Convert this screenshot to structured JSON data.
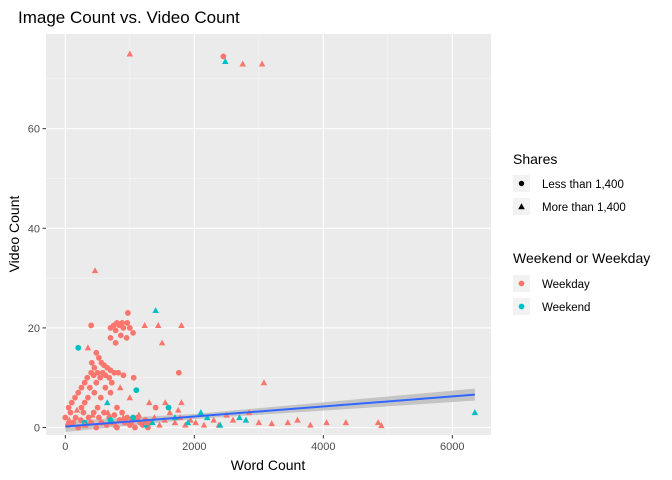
{
  "chart_data": {
    "type": "scatter",
    "title": "Image Count vs. Video Count",
    "xlabel": "Word Count",
    "ylabel": "Video Count",
    "xlim": [
      -300,
      6600
    ],
    "ylim": [
      -1.5,
      79
    ],
    "x_ticks": [
      0,
      2000,
      4000,
      6000
    ],
    "x_tick_labels": [
      "0",
      "2000",
      "4000",
      "6000"
    ],
    "y_ticks": [
      0,
      20,
      40,
      60
    ],
    "y_tick_labels": [
      "0",
      "20",
      "40",
      "60"
    ],
    "grid": true,
    "panel_background": "#ebebeb",
    "colors": {
      "Weekday": "#f8766d",
      "Weekend": "#00bfc4",
      "trend": "#3366ff",
      "ribbon": "#bdbdbd"
    },
    "legend_position": "right",
    "legend": {
      "shape_title": "Shares",
      "shape_items": [
        {
          "label": "Less than 1,400",
          "shape": "circle"
        },
        {
          "label": "More than 1,400",
          "shape": "triangle"
        }
      ],
      "color_title": "Weekend or Weekday",
      "color_items": [
        {
          "label": "Weekday",
          "color": "#f8766d"
        },
        {
          "label": "Weekend",
          "color": "#00bfc4"
        }
      ]
    },
    "trend": {
      "x": [
        0,
        6350
      ],
      "y": [
        0.2,
        6.6
      ],
      "se_low_end": 5.4,
      "se_high_end": 7.8
    },
    "points": [
      {
        "x": 1000,
        "y": 75,
        "shape": "triangle",
        "group": "Weekday"
      },
      {
        "x": 2450,
        "y": 74.5,
        "shape": "circle",
        "group": "Weekday"
      },
      {
        "x": 2480,
        "y": 73.5,
        "shape": "triangle",
        "group": "Weekend"
      },
      {
        "x": 2750,
        "y": 73,
        "shape": "triangle",
        "group": "Weekday"
      },
      {
        "x": 3050,
        "y": 73,
        "shape": "triangle",
        "group": "Weekday"
      },
      {
        "x": 460,
        "y": 31.5,
        "shape": "triangle",
        "group": "Weekday"
      },
      {
        "x": 1400,
        "y": 23.5,
        "shape": "triangle",
        "group": "Weekend"
      },
      {
        "x": 970,
        "y": 23,
        "shape": "circle",
        "group": "Weekday"
      },
      {
        "x": 800,
        "y": 21,
        "shape": "circle",
        "group": "Weekday"
      },
      {
        "x": 880,
        "y": 21,
        "shape": "circle",
        "group": "Weekday"
      },
      {
        "x": 960,
        "y": 21,
        "shape": "circle",
        "group": "Weekday"
      },
      {
        "x": 750,
        "y": 20.5,
        "shape": "circle",
        "group": "Weekday"
      },
      {
        "x": 840,
        "y": 20.5,
        "shape": "circle",
        "group": "Weekday"
      },
      {
        "x": 700,
        "y": 20,
        "shape": "circle",
        "group": "Weekday"
      },
      {
        "x": 900,
        "y": 20,
        "shape": "circle",
        "group": "Weekday"
      },
      {
        "x": 1000,
        "y": 20,
        "shape": "circle",
        "group": "Weekday"
      },
      {
        "x": 780,
        "y": 19.5,
        "shape": "circle",
        "group": "Weekday"
      },
      {
        "x": 1050,
        "y": 19,
        "shape": "circle",
        "group": "Weekday"
      },
      {
        "x": 860,
        "y": 18.5,
        "shape": "circle",
        "group": "Weekday"
      },
      {
        "x": 950,
        "y": 18,
        "shape": "circle",
        "group": "Weekday"
      },
      {
        "x": 1230,
        "y": 20.5,
        "shape": "triangle",
        "group": "Weekday"
      },
      {
        "x": 1440,
        "y": 20.5,
        "shape": "triangle",
        "group": "Weekday"
      },
      {
        "x": 1800,
        "y": 20.5,
        "shape": "triangle",
        "group": "Weekday"
      },
      {
        "x": 400,
        "y": 20.5,
        "shape": "circle",
        "group": "Weekday"
      },
      {
        "x": 200,
        "y": 16,
        "shape": "circle",
        "group": "Weekend"
      },
      {
        "x": 350,
        "y": 16,
        "shape": "triangle",
        "group": "Weekday"
      },
      {
        "x": 1500,
        "y": 17,
        "shape": "triangle",
        "group": "Weekday"
      },
      {
        "x": 700,
        "y": 18,
        "shape": "circle",
        "group": "Weekday"
      },
      {
        "x": 780,
        "y": 17,
        "shape": "circle",
        "group": "Weekday"
      },
      {
        "x": 480,
        "y": 15,
        "shape": "circle",
        "group": "Weekday"
      },
      {
        "x": 520,
        "y": 14,
        "shape": "circle",
        "group": "Weekday"
      },
      {
        "x": 410,
        "y": 13,
        "shape": "circle",
        "group": "Weekday"
      },
      {
        "x": 560,
        "y": 13,
        "shape": "circle",
        "group": "Weekday"
      },
      {
        "x": 600,
        "y": 12.5,
        "shape": "circle",
        "group": "Weekday"
      },
      {
        "x": 450,
        "y": 12,
        "shape": "circle",
        "group": "Weekday"
      },
      {
        "x": 650,
        "y": 12,
        "shape": "circle",
        "group": "Weekday"
      },
      {
        "x": 700,
        "y": 11.5,
        "shape": "circle",
        "group": "Weekday"
      },
      {
        "x": 400,
        "y": 11,
        "shape": "circle",
        "group": "Weekday"
      },
      {
        "x": 500,
        "y": 11,
        "shape": "circle",
        "group": "Weekday"
      },
      {
        "x": 580,
        "y": 11,
        "shape": "circle",
        "group": "Weekday"
      },
      {
        "x": 760,
        "y": 11,
        "shape": "circle",
        "group": "Weekday"
      },
      {
        "x": 820,
        "y": 11,
        "shape": "circle",
        "group": "Weekday"
      },
      {
        "x": 440,
        "y": 10.5,
        "shape": "circle",
        "group": "Weekday"
      },
      {
        "x": 620,
        "y": 10.5,
        "shape": "circle",
        "group": "Weekday"
      },
      {
        "x": 900,
        "y": 10.5,
        "shape": "circle",
        "group": "Weekday"
      },
      {
        "x": 340,
        "y": 10,
        "shape": "circle",
        "group": "Weekday"
      },
      {
        "x": 540,
        "y": 10,
        "shape": "circle",
        "group": "Weekday"
      },
      {
        "x": 680,
        "y": 10,
        "shape": "circle",
        "group": "Weekday"
      },
      {
        "x": 1060,
        "y": 10,
        "shape": "circle",
        "group": "Weekday"
      },
      {
        "x": 300,
        "y": 9,
        "shape": "circle",
        "group": "Weekday"
      },
      {
        "x": 480,
        "y": 9,
        "shape": "circle",
        "group": "Weekday"
      },
      {
        "x": 720,
        "y": 9,
        "shape": "circle",
        "group": "Weekday"
      },
      {
        "x": 1760,
        "y": 11,
        "shape": "circle",
        "group": "Weekday"
      },
      {
        "x": 3080,
        "y": 9,
        "shape": "triangle",
        "group": "Weekday"
      },
      {
        "x": 250,
        "y": 8,
        "shape": "circle",
        "group": "Weekday"
      },
      {
        "x": 380,
        "y": 8,
        "shape": "circle",
        "group": "Weekday"
      },
      {
        "x": 620,
        "y": 8,
        "shape": "circle",
        "group": "Weekday"
      },
      {
        "x": 850,
        "y": 8,
        "shape": "triangle",
        "group": "Weekday"
      },
      {
        "x": 1100,
        "y": 7.5,
        "shape": "circle",
        "group": "Weekend"
      },
      {
        "x": 200,
        "y": 7,
        "shape": "circle",
        "group": "Weekday"
      },
      {
        "x": 450,
        "y": 7,
        "shape": "circle",
        "group": "Weekday"
      },
      {
        "x": 700,
        "y": 7,
        "shape": "circle",
        "group": "Weekday"
      },
      {
        "x": 150,
        "y": 6,
        "shape": "circle",
        "group": "Weekday"
      },
      {
        "x": 350,
        "y": 6,
        "shape": "circle",
        "group": "Weekday"
      },
      {
        "x": 550,
        "y": 6,
        "shape": "circle",
        "group": "Weekday"
      },
      {
        "x": 1000,
        "y": 6,
        "shape": "triangle",
        "group": "Weekday"
      },
      {
        "x": 100,
        "y": 5,
        "shape": "circle",
        "group": "Weekday"
      },
      {
        "x": 300,
        "y": 5,
        "shape": "circle",
        "group": "Weekday"
      },
      {
        "x": 650,
        "y": 5,
        "shape": "triangle",
        "group": "Weekend"
      },
      {
        "x": 1300,
        "y": 5,
        "shape": "triangle",
        "group": "Weekday"
      },
      {
        "x": 1550,
        "y": 5,
        "shape": "triangle",
        "group": "Weekday"
      },
      {
        "x": 1800,
        "y": 5,
        "shape": "triangle",
        "group": "Weekday"
      },
      {
        "x": 50,
        "y": 4,
        "shape": "circle",
        "group": "Weekday"
      },
      {
        "x": 250,
        "y": 4,
        "shape": "circle",
        "group": "Weekday"
      },
      {
        "x": 500,
        "y": 4,
        "shape": "circle",
        "group": "Weekday"
      },
      {
        "x": 800,
        "y": 4,
        "shape": "circle",
        "group": "Weekday"
      },
      {
        "x": 1400,
        "y": 4,
        "shape": "circle",
        "group": "Weekday"
      },
      {
        "x": 1600,
        "y": 4,
        "shape": "circle",
        "group": "Weekend"
      },
      {
        "x": 1750,
        "y": 3.5,
        "shape": "triangle",
        "group": "Weekday"
      },
      {
        "x": 2100,
        "y": 3,
        "shape": "triangle",
        "group": "Weekend"
      },
      {
        "x": 2500,
        "y": 2.5,
        "shape": "triangle",
        "group": "Weekday"
      },
      {
        "x": 2600,
        "y": 1.5,
        "shape": "triangle",
        "group": "Weekday"
      },
      {
        "x": 2700,
        "y": 2,
        "shape": "triangle",
        "group": "Weekend"
      },
      {
        "x": 2800,
        "y": 1.5,
        "shape": "triangle",
        "group": "Weekend"
      },
      {
        "x": 2850,
        "y": 3,
        "shape": "triangle",
        "group": "Weekday"
      },
      {
        "x": 3000,
        "y": 1,
        "shape": "triangle",
        "group": "Weekday"
      },
      {
        "x": 3200,
        "y": 0.8,
        "shape": "triangle",
        "group": "Weekday"
      },
      {
        "x": 3450,
        "y": 1,
        "shape": "triangle",
        "group": "Weekday"
      },
      {
        "x": 3600,
        "y": 1.5,
        "shape": "triangle",
        "group": "Weekday"
      },
      {
        "x": 3800,
        "y": 0.5,
        "shape": "triangle",
        "group": "Weekday"
      },
      {
        "x": 4050,
        "y": 1,
        "shape": "triangle",
        "group": "Weekday"
      },
      {
        "x": 4350,
        "y": 1,
        "shape": "triangle",
        "group": "Weekday"
      },
      {
        "x": 4850,
        "y": 1,
        "shape": "triangle",
        "group": "Weekday"
      },
      {
        "x": 4900,
        "y": 0.4,
        "shape": "triangle",
        "group": "Weekday"
      },
      {
        "x": 6350,
        "y": 3,
        "shape": "triangle",
        "group": "Weekend"
      },
      {
        "x": 0,
        "y": 2,
        "shape": "circle",
        "group": "Weekday"
      },
      {
        "x": 40,
        "y": 0.5,
        "shape": "circle",
        "group": "Weekday"
      },
      {
        "x": 80,
        "y": 3,
        "shape": "circle",
        "group": "Weekday"
      },
      {
        "x": 120,
        "y": 1,
        "shape": "circle",
        "group": "Weekday"
      },
      {
        "x": 160,
        "y": 2,
        "shape": "circle",
        "group": "Weekday"
      },
      {
        "x": 200,
        "y": 0,
        "shape": "circle",
        "group": "Weekday"
      },
      {
        "x": 240,
        "y": 1.5,
        "shape": "circle",
        "group": "Weekday"
      },
      {
        "x": 280,
        "y": 3,
        "shape": "circle",
        "group": "Weekday"
      },
      {
        "x": 320,
        "y": 0.5,
        "shape": "circle",
        "group": "Weekday"
      },
      {
        "x": 360,
        "y": 2,
        "shape": "circle",
        "group": "Weekday"
      },
      {
        "x": 400,
        "y": 1,
        "shape": "circle",
        "group": "Weekday"
      },
      {
        "x": 440,
        "y": 3,
        "shape": "circle",
        "group": "Weekday"
      },
      {
        "x": 480,
        "y": 0,
        "shape": "circle",
        "group": "Weekday"
      },
      {
        "x": 520,
        "y": 2,
        "shape": "circle",
        "group": "Weekday"
      },
      {
        "x": 560,
        "y": 1,
        "shape": "circle",
        "group": "Weekday"
      },
      {
        "x": 600,
        "y": 3,
        "shape": "circle",
        "group": "Weekday"
      },
      {
        "x": 640,
        "y": 0.5,
        "shape": "circle",
        "group": "Weekday"
      },
      {
        "x": 680,
        "y": 2,
        "shape": "circle",
        "group": "Weekday"
      },
      {
        "x": 720,
        "y": 1,
        "shape": "circle",
        "group": "Weekday"
      },
      {
        "x": 760,
        "y": 2.5,
        "shape": "circle",
        "group": "Weekday"
      },
      {
        "x": 800,
        "y": 0,
        "shape": "circle",
        "group": "Weekday"
      },
      {
        "x": 840,
        "y": 1.5,
        "shape": "circle",
        "group": "Weekday"
      },
      {
        "x": 880,
        "y": 3,
        "shape": "circle",
        "group": "Weekday"
      },
      {
        "x": 920,
        "y": 1,
        "shape": "circle",
        "group": "Weekday"
      },
      {
        "x": 960,
        "y": 2,
        "shape": "circle",
        "group": "Weekday"
      },
      {
        "x": 1000,
        "y": 0.5,
        "shape": "circle",
        "group": "Weekday"
      },
      {
        "x": 1040,
        "y": 1.5,
        "shape": "circle",
        "group": "Weekday"
      },
      {
        "x": 1080,
        "y": 0,
        "shape": "circle",
        "group": "Weekday"
      },
      {
        "x": 1120,
        "y": 2,
        "shape": "circle",
        "group": "Weekday"
      },
      {
        "x": 1160,
        "y": 1,
        "shape": "circle",
        "group": "Weekday"
      },
      {
        "x": 1200,
        "y": 0.5,
        "shape": "circle",
        "group": "Weekday"
      },
      {
        "x": 1240,
        "y": 1.5,
        "shape": "circle",
        "group": "Weekday"
      },
      {
        "x": 1280,
        "y": 0,
        "shape": "circle",
        "group": "Weekday"
      },
      {
        "x": 1320,
        "y": 1,
        "shape": "circle",
        "group": "Weekday"
      },
      {
        "x": 300,
        "y": 1,
        "shape": "circle",
        "group": "Weekend"
      },
      {
        "x": 700,
        "y": 1.5,
        "shape": "circle",
        "group": "Weekend"
      },
      {
        "x": 1050,
        "y": 2,
        "shape": "circle",
        "group": "Weekend"
      },
      {
        "x": 1250,
        "y": 0.5,
        "shape": "circle",
        "group": "Weekend"
      },
      {
        "x": 60,
        "y": 1.5,
        "shape": "triangle",
        "group": "Weekday"
      },
      {
        "x": 180,
        "y": 3.5,
        "shape": "triangle",
        "group": "Weekday"
      },
      {
        "x": 300,
        "y": 0.5,
        "shape": "triangle",
        "group": "Weekday"
      },
      {
        "x": 420,
        "y": 2.5,
        "shape": "triangle",
        "group": "Weekday"
      },
      {
        "x": 540,
        "y": 1,
        "shape": "triangle",
        "group": "Weekday"
      },
      {
        "x": 660,
        "y": 3,
        "shape": "triangle",
        "group": "Weekday"
      },
      {
        "x": 780,
        "y": 0.5,
        "shape": "triangle",
        "group": "Weekday"
      },
      {
        "x": 900,
        "y": 2,
        "shape": "triangle",
        "group": "Weekday"
      },
      {
        "x": 1020,
        "y": 1,
        "shape": "triangle",
        "group": "Weekday"
      },
      {
        "x": 1140,
        "y": 2.5,
        "shape": "triangle",
        "group": "Weekday"
      },
      {
        "x": 1260,
        "y": 1,
        "shape": "triangle",
        "group": "Weekday"
      },
      {
        "x": 1380,
        "y": 2,
        "shape": "triangle",
        "group": "Weekday"
      },
      {
        "x": 1460,
        "y": 0.5,
        "shape": "triangle",
        "group": "Weekday"
      },
      {
        "x": 1540,
        "y": 1.5,
        "shape": "triangle",
        "group": "Weekday"
      },
      {
        "x": 1620,
        "y": 3,
        "shape": "triangle",
        "group": "Weekday"
      },
      {
        "x": 1700,
        "y": 1,
        "shape": "triangle",
        "group": "Weekday"
      },
      {
        "x": 1780,
        "y": 2,
        "shape": "triangle",
        "group": "Weekday"
      },
      {
        "x": 1860,
        "y": 0.5,
        "shape": "triangle",
        "group": "Weekday"
      },
      {
        "x": 1940,
        "y": 1.5,
        "shape": "triangle",
        "group": "Weekday"
      },
      {
        "x": 2020,
        "y": 1,
        "shape": "triangle",
        "group": "Weekday"
      },
      {
        "x": 2150,
        "y": 0.5,
        "shape": "triangle",
        "group": "Weekday"
      },
      {
        "x": 2300,
        "y": 1.5,
        "shape": "triangle",
        "group": "Weekday"
      },
      {
        "x": 2380,
        "y": 0.5,
        "shape": "triangle",
        "group": "Weekday"
      },
      {
        "x": 1350,
        "y": 1,
        "shape": "triangle",
        "group": "Weekend"
      },
      {
        "x": 1700,
        "y": 2,
        "shape": "triangle",
        "group": "Weekend"
      },
      {
        "x": 1900,
        "y": 1,
        "shape": "triangle",
        "group": "Weekend"
      },
      {
        "x": 2200,
        "y": 2,
        "shape": "triangle",
        "group": "Weekend"
      },
      {
        "x": 2400,
        "y": 0.5,
        "shape": "triangle",
        "group": "Weekend"
      }
    ]
  }
}
